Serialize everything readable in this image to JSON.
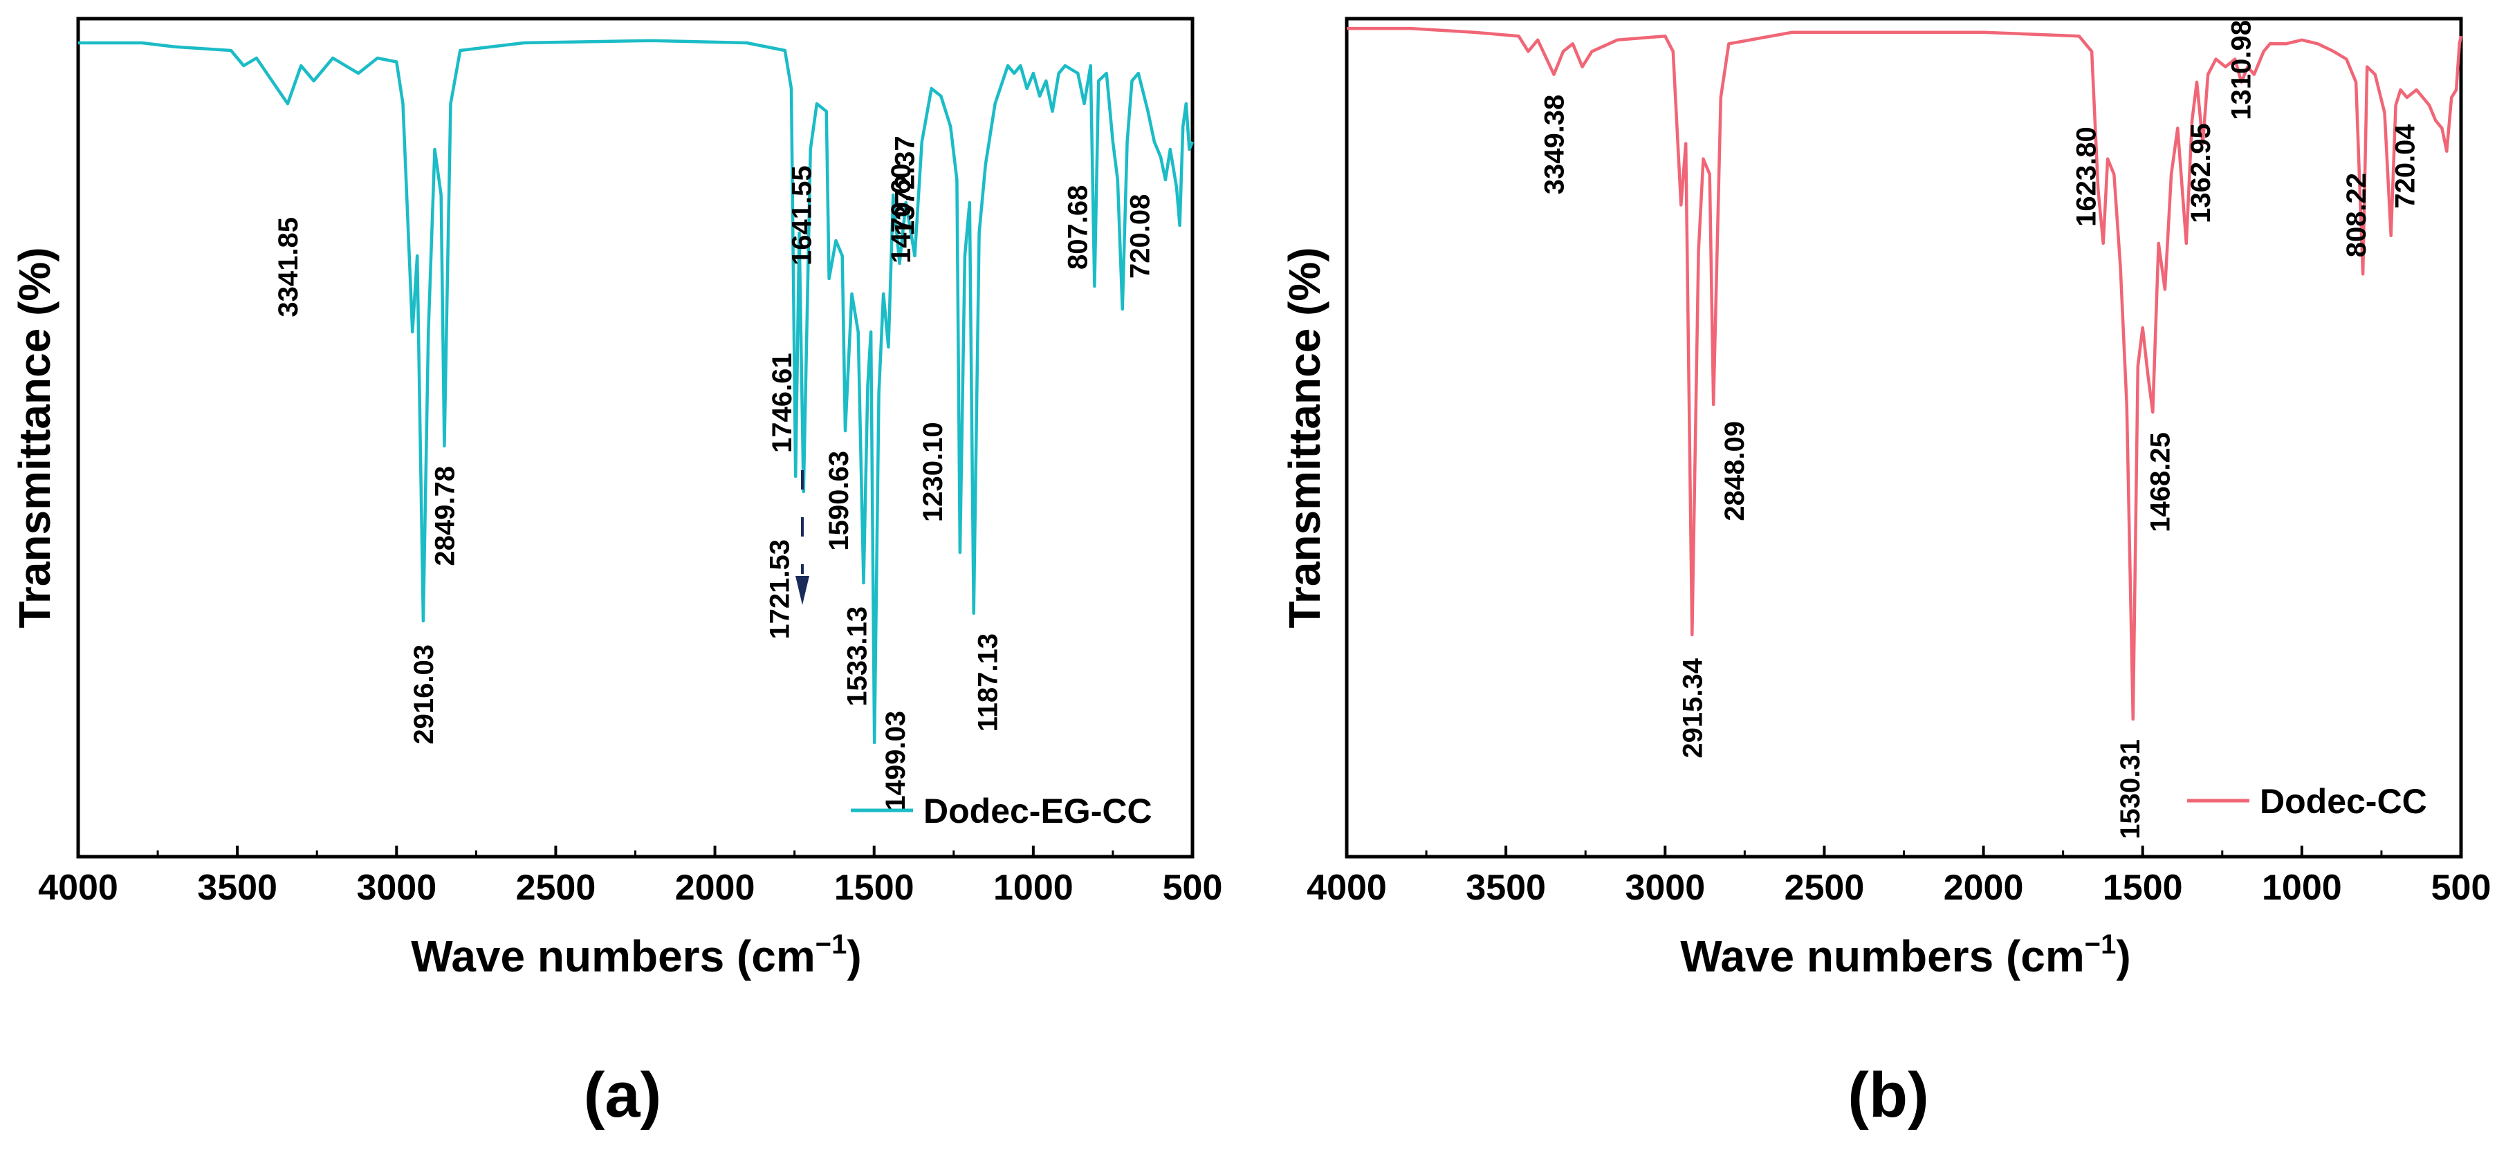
{
  "chart_data": [
    {
      "type": "line",
      "panel_label": "(a)",
      "xlabel": "Wave numbers (cm",
      "xlabel_sup": "−1",
      "xlabel_close": ")",
      "ylabel": "Transmittance (%)",
      "xlim": [
        4000,
        500
      ],
      "x_ticks": [
        "4000",
        "3500",
        "3000",
        "2500",
        "2000",
        "1500",
        "1000",
        "500"
      ],
      "legend": {
        "label": "Dodec-EG-CC",
        "position": "bottom-right"
      },
      "color": "#1bbcc6",
      "baseline": 98,
      "series": [
        {
          "name": "Dodec-EG-CC",
          "points": [
            [
              4000,
              98
            ],
            [
              3800,
              98
            ],
            [
              3700,
              97.5
            ],
            [
              3520,
              97
            ],
            [
              3480,
              95
            ],
            [
              3440,
              96
            ],
            [
              3341.85,
              90
            ],
            [
              3300,
              95
            ],
            [
              3260,
              93
            ],
            [
              3200,
              96
            ],
            [
              3120,
              94
            ],
            [
              3060,
              96
            ],
            [
              3000,
              95.5
            ],
            [
              2980,
              90
            ],
            [
              2950,
              60
            ],
            [
              2935,
              70
            ],
            [
              2916.03,
              22
            ],
            [
              2900,
              60
            ],
            [
              2880,
              84
            ],
            [
              2860,
              78
            ],
            [
              2849.78,
              45
            ],
            [
              2830,
              90
            ],
            [
              2800,
              97
            ],
            [
              2600,
              98
            ],
            [
              2200,
              98.3
            ],
            [
              1900,
              98
            ],
            [
              1780,
              97
            ],
            [
              1760,
              92
            ],
            [
              1746.61,
              41
            ],
            [
              1735,
              73
            ],
            [
              1721.53,
              39
            ],
            [
              1700,
              84
            ],
            [
              1680,
              90
            ],
            [
              1650,
              89
            ],
            [
              1641.55,
              67
            ],
            [
              1620,
              72
            ],
            [
              1600,
              70
            ],
            [
              1590.63,
              47
            ],
            [
              1570,
              65
            ],
            [
              1550,
              60
            ],
            [
              1533.13,
              27
            ],
            [
              1520,
              53
            ],
            [
              1510,
              60
            ],
            [
              1499.03,
              6
            ],
            [
              1485,
              52
            ],
            [
              1470.6,
              65
            ],
            [
              1455,
              58
            ],
            [
              1440,
              78
            ],
            [
              1420,
              69
            ],
            [
              1400,
              77
            ],
            [
              1372.37,
              70
            ],
            [
              1350,
              85
            ],
            [
              1320,
              92
            ],
            [
              1290,
              91
            ],
            [
              1260,
              87
            ],
            [
              1240,
              80
            ],
            [
              1230.1,
              31
            ],
            [
              1215,
              70
            ],
            [
              1200,
              77
            ],
            [
              1187.13,
              23
            ],
            [
              1170,
              73
            ],
            [
              1150,
              82
            ],
            [
              1120,
              90
            ],
            [
              1080,
              95
            ],
            [
              1060,
              94
            ],
            [
              1040,
              95
            ],
            [
              1020,
              92
            ],
            [
              1000,
              94
            ],
            [
              980,
              91
            ],
            [
              960,
              93
            ],
            [
              940,
              89
            ],
            [
              920,
              94
            ],
            [
              900,
              95
            ],
            [
              860,
              94
            ],
            [
              840,
              90
            ],
            [
              820,
              95
            ],
            [
              807.68,
              66
            ],
            [
              795,
              93
            ],
            [
              770,
              94
            ],
            [
              750,
              85
            ],
            [
              735,
              80
            ],
            [
              720.08,
              63
            ],
            [
              705,
              85
            ],
            [
              690,
              93
            ],
            [
              670,
              94
            ],
            [
              640,
              89
            ],
            [
              620,
              85
            ],
            [
              600,
              83
            ],
            [
              585,
              80
            ],
            [
              570,
              84
            ],
            [
              550,
              79
            ],
            [
              540,
              74
            ],
            [
              530,
              87
            ],
            [
              520,
              90
            ],
            [
              510,
              84
            ],
            [
              500,
              85
            ]
          ]
        }
      ],
      "annotations": [
        "3341.85",
        "2916.03",
        "2849.78",
        "1746.61",
        "1721.53",
        "1641.55",
        "1590.63",
        "1533.13",
        "1499.03",
        "1470.60",
        "1372.37",
        "1230.10",
        "1187.13",
        "807.68",
        "720.08"
      ]
    },
    {
      "type": "line",
      "panel_label": "(b)",
      "xlabel": "Wave numbers (cm",
      "xlabel_sup": "−1",
      "xlabel_close": ")",
      "ylabel": "Transmittance (%)",
      "xlim": [
        4000,
        500
      ],
      "x_ticks": [
        "4000",
        "3500",
        "3000",
        "2500",
        "2000",
        "1500",
        "1000",
        "500"
      ],
      "legend": {
        "label": "Dodec-CC",
        "position": "bottom-right"
      },
      "color": "#f06676",
      "baseline": 98,
      "series": [
        {
          "name": "Dodec-CC",
          "points": [
            [
              4000,
              99
            ],
            [
              3800,
              99
            ],
            [
              3600,
              98.5
            ],
            [
              3460,
              98
            ],
            [
              3430,
              96
            ],
            [
              3400,
              97.5
            ],
            [
              3349.38,
              93
            ],
            [
              3320,
              96
            ],
            [
              3290,
              97
            ],
            [
              3260,
              94
            ],
            [
              3230,
              96
            ],
            [
              3150,
              97.5
            ],
            [
              3000,
              98
            ],
            [
              2975,
              96
            ],
            [
              2950,
              76
            ],
            [
              2935,
              84
            ],
            [
              2915.34,
              20
            ],
            [
              2895,
              70
            ],
            [
              2880,
              82
            ],
            [
              2860,
              80
            ],
            [
              2848.09,
              50
            ],
            [
              2825,
              90
            ],
            [
              2800,
              97
            ],
            [
              2600,
              98.5
            ],
            [
              2000,
              98.5
            ],
            [
              1700,
              98
            ],
            [
              1660,
              96
            ],
            [
              1640,
              78
            ],
            [
              1623.8,
              71
            ],
            [
              1610,
              82
            ],
            [
              1590,
              80
            ],
            [
              1570,
              68
            ],
            [
              1550,
              50
            ],
            [
              1530.31,
              9
            ],
            [
              1515,
              55
            ],
            [
              1500,
              60
            ],
            [
              1484,
              54
            ],
            [
              1468.25,
              49
            ],
            [
              1450,
              71
            ],
            [
              1430,
              65
            ],
            [
              1410,
              80
            ],
            [
              1390,
              86
            ],
            [
              1362.95,
              71
            ],
            [
              1345,
              87
            ],
            [
              1330,
              92
            ],
            [
              1310.98,
              84
            ],
            [
              1295,
              93
            ],
            [
              1270,
              95
            ],
            [
              1240,
              94
            ],
            [
              1210,
              95
            ],
            [
              1190,
              92
            ],
            [
              1170,
              94
            ],
            [
              1150,
              93
            ],
            [
              1120,
              96
            ],
            [
              1100,
              97
            ],
            [
              1050,
              97
            ],
            [
              1000,
              97.5
            ],
            [
              950,
              97
            ],
            [
              900,
              96
            ],
            [
              860,
              95
            ],
            [
              830,
              92
            ],
            [
              808.22,
              67
            ],
            [
              795,
              94
            ],
            [
              770,
              93
            ],
            [
              740,
              88
            ],
            [
              720.04,
              72
            ],
            [
              705,
              89
            ],
            [
              690,
              91
            ],
            [
              670,
              90
            ],
            [
              640,
              91
            ],
            [
              600,
              89
            ],
            [
              580,
              87
            ],
            [
              560,
              86
            ],
            [
              545,
              83
            ],
            [
              530,
              90
            ],
            [
              515,
              91
            ],
            [
              505,
              97
            ],
            [
              500,
              98
            ]
          ]
        }
      ],
      "annotations": [
        "3349.38",
        "2915.34",
        "2848.09",
        "1623.80",
        "1530.31",
        "1468.25",
        "1362.95",
        "1310.98",
        "808.22",
        "720.04"
      ]
    }
  ]
}
